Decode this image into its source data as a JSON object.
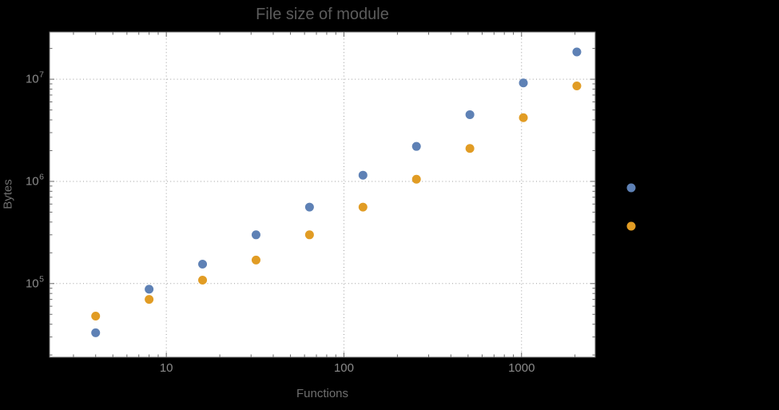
{
  "chart_data": {
    "type": "scatter",
    "title": "File size of module",
    "xlabel": "Functions",
    "ylabel": "Bytes",
    "x_scale": "log",
    "y_scale": "log",
    "xlim": [
      2.2,
      2600
    ],
    "ylim": [
      19000,
      29000000
    ],
    "x_ticks": [
      10,
      100,
      1000
    ],
    "x_tick_labels": [
      "10",
      "100",
      "1000"
    ],
    "y_ticks": [
      100000,
      1000000,
      10000000
    ],
    "y_tick_base": "10",
    "y_tick_exponents": [
      "5",
      "6",
      "7"
    ],
    "grid": {
      "style": "dotted",
      "color": "#9f9f9f",
      "x_values": [
        10,
        100,
        1000
      ],
      "y_values": [
        100000,
        1000000,
        10000000
      ]
    },
    "series": [
      {
        "name": "blue",
        "color": "#5e81b5",
        "marker": "circle",
        "points": [
          [
            4,
            33000
          ],
          [
            8,
            88000
          ],
          [
            16,
            155000
          ],
          [
            32,
            300000
          ],
          [
            64,
            560000
          ],
          [
            128,
            1150000
          ],
          [
            256,
            2200000
          ],
          [
            512,
            4500000
          ],
          [
            1024,
            9200000
          ],
          [
            2048,
            18500000
          ]
        ]
      },
      {
        "name": "orange",
        "color": "#e19c24",
        "marker": "circle",
        "points": [
          [
            4,
            48000
          ],
          [
            8,
            70000
          ],
          [
            16,
            108000
          ],
          [
            32,
            170000
          ],
          [
            64,
            300000
          ],
          [
            128,
            560000
          ],
          [
            256,
            1050000
          ],
          [
            512,
            2100000
          ],
          [
            1024,
            4200000
          ],
          [
            2048,
            8600000
          ]
        ]
      }
    ],
    "legend_markers": [
      {
        "color": "#5e81b5"
      },
      {
        "color": "#e19c24"
      }
    ],
    "colors": {
      "outer_background": "#000000",
      "plot_background": "#ffffff",
      "frame": "#696969",
      "tick_label": "#8a8a8a",
      "title": "#5c5c5c",
      "axis_label": "#6f6f6f"
    }
  }
}
